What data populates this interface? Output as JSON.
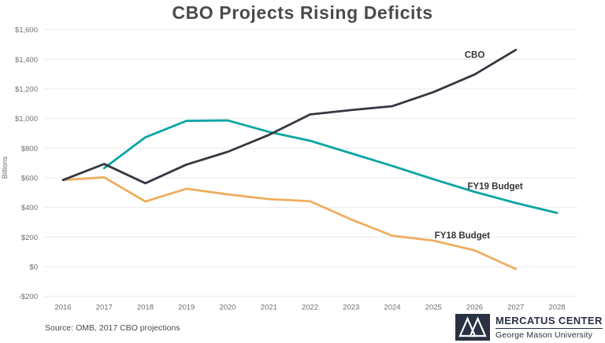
{
  "title": "CBO Projects Rising Deficits",
  "source_note": "Source: OMB, 2017 CBO projections",
  "logo": {
    "org": "MERCATUS CENTER",
    "sub": "George Mason University",
    "navy": "#2a3142"
  },
  "chart_data": {
    "type": "line",
    "title": "CBO Projects Rising Deficits",
    "xlabel": "",
    "ylabel": "Billions",
    "ylim": [
      -200,
      1600
    ],
    "xlim": [
      2016,
      2028
    ],
    "grid": "horizontal",
    "legend_position": "inline-labels",
    "x_ticks": [
      "2016",
      "2017",
      "2018",
      "2019",
      "2020",
      "2021",
      "2022",
      "2023",
      "2024",
      "2025",
      "2026",
      "2027",
      "2028"
    ],
    "y_ticks": [
      {
        "value": 1600,
        "label": "$1,600"
      },
      {
        "value": 1400,
        "label": "$1,400"
      },
      {
        "value": 1200,
        "label": "$1,200"
      },
      {
        "value": 1000,
        "label": "$1,000"
      },
      {
        "value": 800,
        "label": "$800"
      },
      {
        "value": 600,
        "label": "$600"
      },
      {
        "value": 400,
        "label": "$400"
      },
      {
        "value": 200,
        "label": "$200"
      },
      {
        "value": 0,
        "label": "$0"
      },
      {
        "value": -200,
        "label": "-$200"
      }
    ],
    "series": [
      {
        "name": "FY18 Budget",
        "label": "FY18 Budget",
        "color": "#efae60",
        "start_year": 2016,
        "values": [
          585,
          603,
          440,
          526,
          488,
          456,
          442,
          319,
          209,
          176,
          110,
          -16
        ],
        "label_at": {
          "year": 2025.7,
          "value": 212
        }
      },
      {
        "name": "FY19 Budget",
        "label": "FY19 Budget",
        "color": "#0aa5a4",
        "start_year": 2017,
        "values": [
          665,
          873,
          984,
          987,
          910,
          850,
          765,
          680,
          590,
          505,
          430,
          363
        ],
        "label_at": {
          "year": 2026.5,
          "value": 545
        }
      },
      {
        "name": "CBO",
        "label": "CBO",
        "color": "#343840",
        "start_year": 2016,
        "values": [
          585,
          693,
          563,
          689,
          775,
          889,
          1027,
          1057,
          1083,
          1178,
          1297,
          1463
        ],
        "label_at": {
          "year": 2026.0,
          "value": 1430
        }
      }
    ],
    "style": {
      "gridline_color": "#e9e9e9",
      "tick_color": "#6e6e6e",
      "series_label_color": "#353535",
      "line_width": 2.8
    }
  }
}
